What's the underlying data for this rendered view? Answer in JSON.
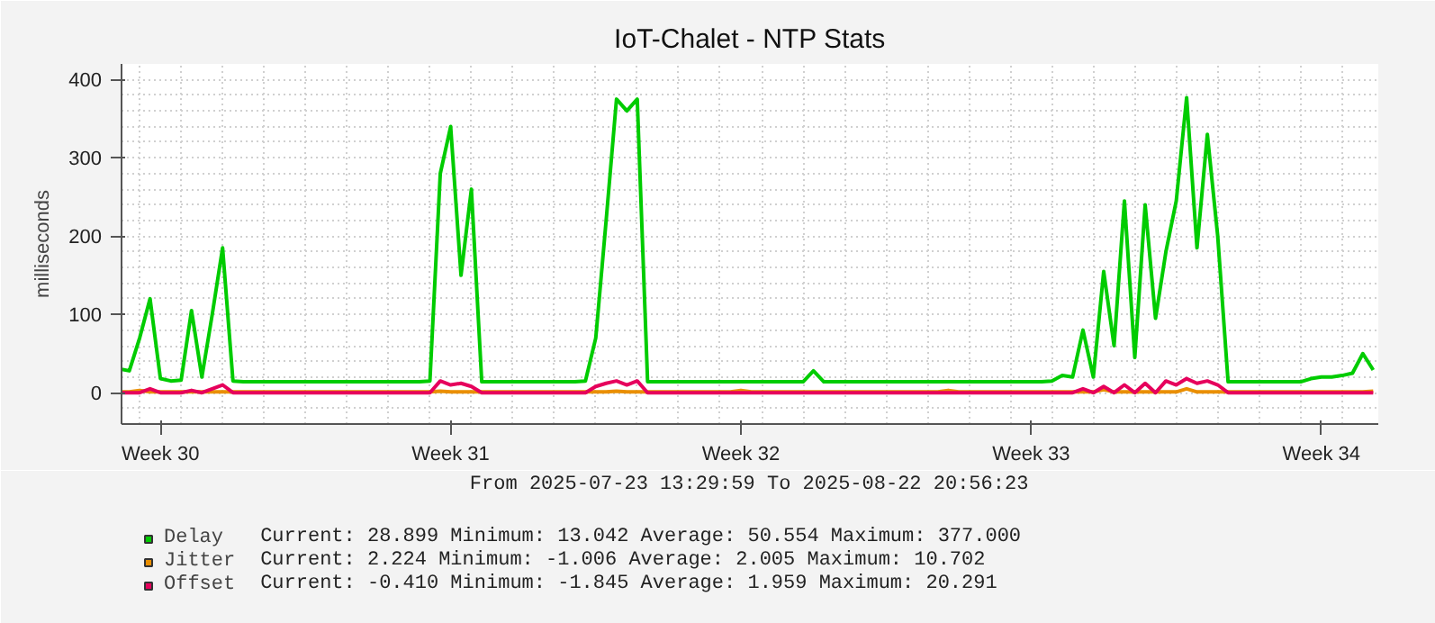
{
  "chart_data": {
    "type": "line",
    "title": "IoT-Chalet - NTP Stats",
    "ylabel": "milliseconds",
    "x": [
      "2025-07-23T13:30",
      "2025-07-23T18:00",
      "2025-07-24T00:00",
      "2025-07-24T06:00",
      "2025-07-24T12:00",
      "2025-07-24T18:00",
      "2025-07-25T00:00",
      "2025-07-25T06:00",
      "2025-07-25T12:00",
      "2025-07-25T18:00",
      "2025-07-26T00:00",
      "2025-07-26T06:00",
      "2025-07-26T12:00",
      "2025-07-26T18:00",
      "2025-07-27T00:00",
      "2025-07-27T06:00",
      "2025-07-27T12:00",
      "2025-07-27T18:00",
      "2025-07-28T00:00",
      "2025-07-28T06:00",
      "2025-07-28T12:00",
      "2025-07-28T18:00",
      "2025-07-29T00:00",
      "2025-07-29T06:00",
      "2025-07-29T12:00",
      "2025-07-29T18:00",
      "2025-07-30T00:00",
      "2025-07-30T06:00",
      "2025-07-30T12:00",
      "2025-07-30T18:00",
      "2025-07-31T00:00",
      "2025-07-31T06:00",
      "2025-07-31T12:00",
      "2025-07-31T18:00",
      "2025-08-01T00:00",
      "2025-08-01T06:00",
      "2025-08-01T12:00",
      "2025-08-01T18:00",
      "2025-08-02T00:00",
      "2025-08-02T06:00",
      "2025-08-02T12:00",
      "2025-08-02T18:00",
      "2025-08-03T00:00",
      "2025-08-03T06:00",
      "2025-08-03T12:00",
      "2025-08-03T18:00",
      "2025-08-04T00:00",
      "2025-08-04T06:00",
      "2025-08-04T12:00",
      "2025-08-04T18:00",
      "2025-08-05T00:00",
      "2025-08-05T06:00",
      "2025-08-05T12:00",
      "2025-08-05T18:00",
      "2025-08-06T00:00",
      "2025-08-06T06:00",
      "2025-08-06T12:00",
      "2025-08-06T18:00",
      "2025-08-07T00:00",
      "2025-08-07T06:00",
      "2025-08-07T12:00",
      "2025-08-07T18:00",
      "2025-08-08T00:00",
      "2025-08-08T06:00",
      "2025-08-08T12:00",
      "2025-08-08T18:00",
      "2025-08-09T00:00",
      "2025-08-09T06:00",
      "2025-08-09T12:00",
      "2025-08-09T18:00",
      "2025-08-10T00:00",
      "2025-08-10T06:00",
      "2025-08-10T12:00",
      "2025-08-10T18:00",
      "2025-08-11T00:00",
      "2025-08-11T06:00",
      "2025-08-11T12:00",
      "2025-08-11T18:00",
      "2025-08-12T00:00",
      "2025-08-12T06:00",
      "2025-08-12T12:00",
      "2025-08-12T18:00",
      "2025-08-13T00:00",
      "2025-08-13T06:00",
      "2025-08-13T12:00",
      "2025-08-13T18:00",
      "2025-08-14T00:00",
      "2025-08-14T06:00",
      "2025-08-14T12:00",
      "2025-08-14T18:00",
      "2025-08-15T00:00",
      "2025-08-15T06:00",
      "2025-08-15T12:00",
      "2025-08-15T18:00",
      "2025-08-16T00:00",
      "2025-08-16T06:00",
      "2025-08-16T12:00",
      "2025-08-16T18:00",
      "2025-08-17T00:00",
      "2025-08-17T06:00",
      "2025-08-17T12:00",
      "2025-08-17T18:00",
      "2025-08-18T00:00",
      "2025-08-18T06:00",
      "2025-08-18T12:00",
      "2025-08-18T18:00",
      "2025-08-19T00:00",
      "2025-08-19T06:00",
      "2025-08-19T12:00",
      "2025-08-19T18:00",
      "2025-08-20T00:00",
      "2025-08-20T06:00",
      "2025-08-20T12:00",
      "2025-08-20T18:00",
      "2025-08-21T00:00",
      "2025-08-21T06:00",
      "2025-08-21T12:00",
      "2025-08-21T18:00",
      "2025-08-22T00:00",
      "2025-08-22T06:00",
      "2025-08-22T12:00",
      "2025-08-22T18:00"
    ],
    "series": [
      {
        "name": "Delay",
        "color": "#00cc00",
        "values": [
          30,
          28,
          70,
          120,
          18,
          15,
          16,
          105,
          20,
          100,
          185,
          15,
          14,
          14,
          14,
          14,
          14,
          14,
          14,
          14,
          14,
          14,
          14,
          14,
          14,
          14,
          14,
          14,
          14,
          14,
          15,
          280,
          340,
          150,
          260,
          14,
          14,
          14,
          14,
          14,
          14,
          14,
          14,
          14,
          14,
          15,
          70,
          220,
          375,
          360,
          375,
          14,
          14,
          14,
          14,
          14,
          14,
          14,
          14,
          14,
          14,
          14,
          14,
          14,
          14,
          14,
          14,
          28,
          14,
          14,
          14,
          14,
          14,
          14,
          14,
          14,
          14,
          14,
          14,
          14,
          14,
          14,
          14,
          14,
          14,
          14,
          14,
          14,
          14,
          14,
          15,
          22,
          20,
          80,
          20,
          155,
          60,
          245,
          45,
          240,
          95,
          180,
          245,
          377,
          185,
          330,
          200,
          14,
          14,
          14,
          14,
          14,
          14,
          14,
          14,
          18,
          20,
          20,
          22,
          25,
          50,
          29
        ]
      },
      {
        "name": "Jitter",
        "color": "#ea8f00",
        "values": [
          1,
          1,
          3,
          1,
          1,
          1,
          1,
          1,
          1,
          1,
          1,
          1,
          1,
          1,
          1,
          1,
          1,
          1,
          1,
          1,
          1,
          1,
          1,
          1,
          1,
          1,
          1,
          1,
          1,
          1,
          1,
          2,
          1,
          1,
          1,
          1,
          1,
          1,
          1,
          1,
          1,
          1,
          1,
          1,
          1,
          1,
          1,
          1,
          2,
          1,
          1,
          1,
          1,
          1,
          1,
          1,
          1,
          1,
          1,
          1,
          3,
          1,
          1,
          1,
          1,
          1,
          1,
          1,
          1,
          1,
          1,
          1,
          1,
          1,
          1,
          1,
          1,
          1,
          1,
          1,
          3,
          1,
          1,
          1,
          1,
          1,
          1,
          1,
          1,
          1,
          1,
          1,
          1,
          1,
          1,
          4,
          1,
          1,
          1,
          1,
          1,
          1,
          1,
          5,
          1,
          1,
          1,
          1,
          1,
          1,
          1,
          1,
          1,
          1,
          1,
          1,
          1,
          1,
          1,
          1,
          1,
          2
        ]
      },
      {
        "name": "Offset",
        "color": "#e6005c",
        "values": [
          0,
          0,
          0,
          5,
          0,
          0,
          0,
          3,
          0,
          5,
          10,
          0,
          0,
          0,
          0,
          0,
          0,
          0,
          0,
          0,
          0,
          0,
          0,
          0,
          0,
          0,
          0,
          0,
          0,
          0,
          0,
          15,
          10,
          12,
          8,
          0,
          0,
          0,
          0,
          0,
          0,
          0,
          0,
          0,
          0,
          0,
          8,
          12,
          15,
          10,
          15,
          0,
          0,
          0,
          0,
          0,
          0,
          0,
          0,
          0,
          0,
          0,
          0,
          0,
          0,
          0,
          0,
          0,
          0,
          0,
          0,
          0,
          0,
          0,
          0,
          0,
          0,
          0,
          0,
          0,
          0,
          0,
          0,
          0,
          0,
          0,
          0,
          0,
          0,
          0,
          0,
          0,
          0,
          5,
          0,
          8,
          0,
          10,
          0,
          12,
          0,
          15,
          10,
          18,
          12,
          15,
          10,
          0,
          0,
          0,
          0,
          0,
          0,
          0,
          0,
          0,
          0,
          0,
          0,
          0,
          0,
          0
        ]
      }
    ],
    "xlim": [
      "2025-07-23T13:29:59",
      "2025-08-22T20:56:23"
    ],
    "xticks": [
      {
        "value": "2025-07-24T12:00",
        "label": "Week 30"
      },
      {
        "value": "2025-07-31T12:00",
        "label": "Week 31"
      },
      {
        "value": "2025-08-07T12:00",
        "label": "Week 32"
      },
      {
        "value": "2025-08-14T12:00",
        "label": "Week 33"
      },
      {
        "value": "2025-08-21T12:00",
        "label": "Week 34"
      }
    ],
    "ylim": [
      -40,
      420
    ],
    "yticks": [
      0,
      100,
      200,
      300,
      400
    ],
    "grid": true,
    "legend": "bottom",
    "line_style": "solid",
    "annotations": [
      "From 2025-07-23 13:29:59 To 2025-08-22 20:56:23",
      "Current: 28.899  Minimum: 13.042  Average: 50.554  Maximum: 377.000",
      "Current: 2.224  Minimum: -1.006  Average: 2.005  Maximum: 10.702",
      "Current: -0.410  Minimum: -1.845  Average: 1.959  Maximum: 20.291"
    ]
  }
}
